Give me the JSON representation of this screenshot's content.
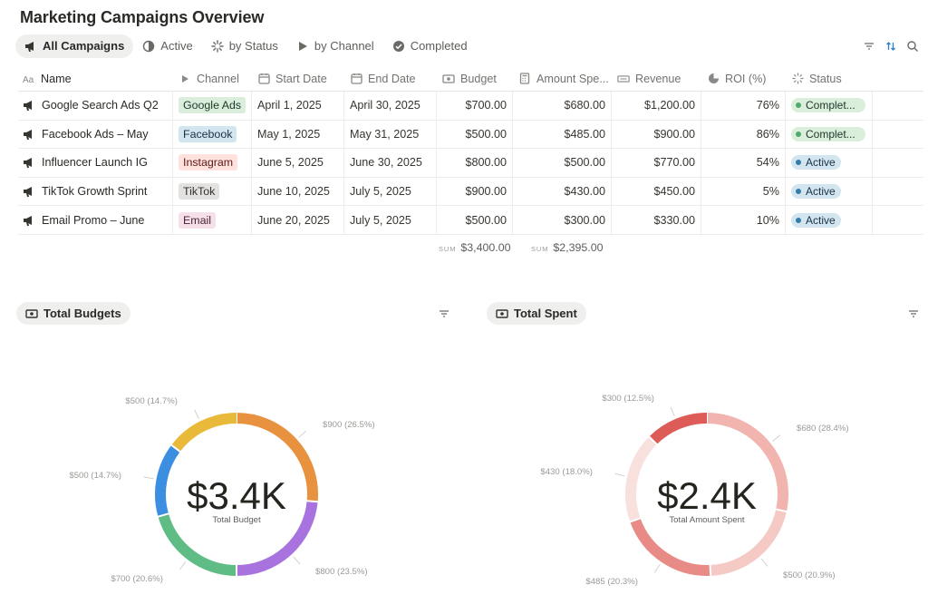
{
  "page": {
    "title": "Marketing Campaigns Overview"
  },
  "views": [
    {
      "label": "All Campaigns",
      "icon": "megaphone-icon",
      "active": true
    },
    {
      "label": "Active",
      "icon": "pie-icon",
      "active": false
    },
    {
      "label": "by Status",
      "icon": "loader-icon",
      "active": false
    },
    {
      "label": "by Channel",
      "icon": "play-icon",
      "active": false
    },
    {
      "label": "Completed",
      "icon": "check-circle-icon",
      "active": false
    }
  ],
  "toolbar": {
    "filter_icon": "filter-icon",
    "sort_icon": "sort-icon",
    "search_icon": "search-icon"
  },
  "table": {
    "headers": {
      "name": "Name",
      "channel": "Channel",
      "start": "Start Date",
      "end": "End Date",
      "budget": "Budget",
      "spent": "Amount Spe...",
      "revenue": "Revenue",
      "roi": "ROI (%)",
      "status": "Status"
    },
    "rows": [
      {
        "name": "Google Search Ads Q2",
        "channel": "Google Ads",
        "channel_style": "google",
        "start": "April 1, 2025",
        "end": "April 30, 2025",
        "budget": "$700.00",
        "spent": "$680.00",
        "revenue": "$1,200.00",
        "roi": "76%",
        "status": "Complet...",
        "status_style": "done"
      },
      {
        "name": "Facebook Ads – May",
        "channel": "Facebook",
        "channel_style": "facebook",
        "start": "May 1, 2025",
        "end": "May 31, 2025",
        "budget": "$500.00",
        "spent": "$485.00",
        "revenue": "$900.00",
        "roi": "86%",
        "status": "Complet...",
        "status_style": "done"
      },
      {
        "name": "Influencer Launch IG",
        "channel": "Instagram",
        "channel_style": "instagram",
        "start": "June 5, 2025",
        "end": "June 30, 2025",
        "budget": "$800.00",
        "spent": "$500.00",
        "revenue": "$770.00",
        "roi": "54%",
        "status": "Active",
        "status_style": "active"
      },
      {
        "name": "TikTok Growth Sprint",
        "channel": "TikTok",
        "channel_style": "tiktok",
        "start": "June 10, 2025",
        "end": "July 5, 2025",
        "budget": "$900.00",
        "spent": "$430.00",
        "revenue": "$450.00",
        "roi": "5%",
        "status": "Active",
        "status_style": "active"
      },
      {
        "name": "Email Promo – June",
        "channel": "Email",
        "channel_style": "email",
        "start": "June 20, 2025",
        "end": "July 5, 2025",
        "budget": "$500.00",
        "spent": "$300.00",
        "revenue": "$330.00",
        "roi": "10%",
        "status": "Active",
        "status_style": "active"
      }
    ],
    "sums": {
      "label": "SUM",
      "budget": "$3,400.00",
      "spent": "$2,395.00"
    }
  },
  "colors": {
    "chip_bg": {
      "google": "#dbeddb",
      "facebook": "#d3e5ef",
      "instagram": "#ffe2dd",
      "tiktok": "#e3e2e0",
      "email": "#f5e0e9"
    },
    "status_done": "#4dab6d",
    "status_active": "#337ea9"
  },
  "chart_data": [
    {
      "type": "pie",
      "title": "Total Budgets",
      "center_value": "$3.4K",
      "center_label": "Total Budget",
      "slices": [
        {
          "label": "$900 (26.5%)",
          "value": 900,
          "color": "#e8913e"
        },
        {
          "label": "$800 (23.5%)",
          "value": 800,
          "color": "#a873de"
        },
        {
          "label": "$700 (20.6%)",
          "value": 700,
          "color": "#5fbc85"
        },
        {
          "label": "$500 (14.7%)",
          "value": 500,
          "color": "#3b8ee0"
        },
        {
          "label": "$500 (14.7%)",
          "value": 500,
          "color": "#e9b93a"
        }
      ]
    },
    {
      "type": "pie",
      "title": "Total Spent",
      "center_value": "$2.4K",
      "center_label": "Total Amount Spent",
      "slices": [
        {
          "label": "$680 (28.4%)",
          "value": 680,
          "color": "#f2b4ae"
        },
        {
          "label": "$500 (20.9%)",
          "value": 500,
          "color": "#f5cac5"
        },
        {
          "label": "$485 (20.3%)",
          "value": 485,
          "color": "#e88a85"
        },
        {
          "label": "$430 (18.0%)",
          "value": 430,
          "color": "#f8e0dd"
        },
        {
          "label": "$300 (12.5%)",
          "value": 300,
          "color": "#de5c58"
        }
      ]
    }
  ]
}
